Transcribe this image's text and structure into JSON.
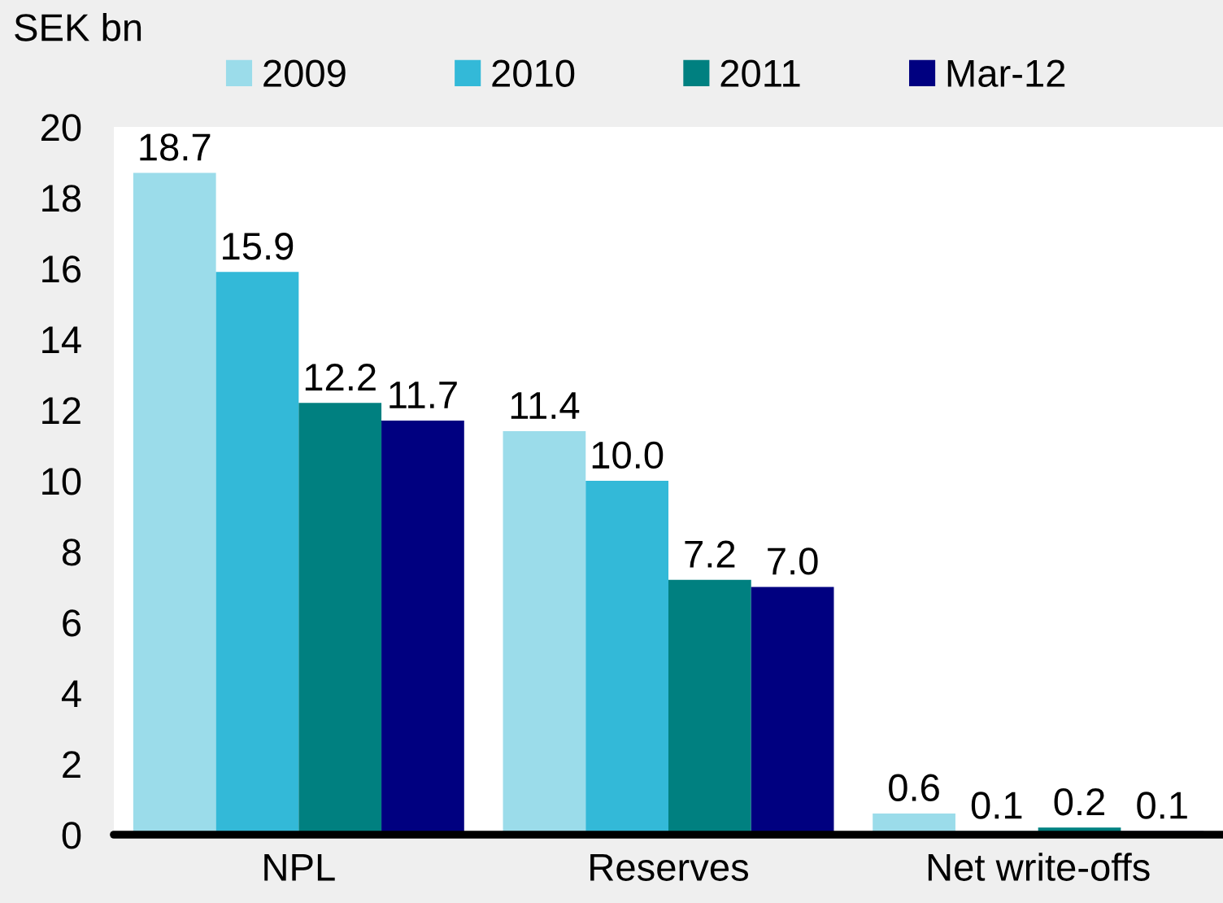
{
  "chart_data": {
    "type": "bar",
    "ylabel": "SEK bn",
    "categories": [
      "NPL",
      "Reserves",
      "Net write-offs"
    ],
    "series": [
      {
        "name": "2009",
        "color": "#9bdcea",
        "values": [
          18.7,
          11.4,
          0.6
        ],
        "value_labels": [
          "18.7",
          "11.4",
          "0.6"
        ]
      },
      {
        "name": "2010",
        "color": "#33b9d8",
        "values": [
          15.9,
          10.0,
          0.1
        ],
        "value_labels": [
          "15.9",
          "10.0",
          "0.1"
        ]
      },
      {
        "name": "2011",
        "color": "#008080",
        "values": [
          12.2,
          7.2,
          0.2
        ],
        "value_labels": [
          "12.2",
          "7.2",
          "0.2"
        ]
      },
      {
        "name": "Mar-12",
        "color": "#000080",
        "values": [
          11.7,
          7.0,
          0.1
        ],
        "value_labels": [
          "11.7",
          "7.0",
          "0.1"
        ]
      }
    ],
    "ylim": [
      0,
      20
    ],
    "yticks": [
      0,
      2,
      4,
      6,
      8,
      10,
      12,
      14,
      16,
      18,
      20
    ],
    "legend": "top",
    "grid": false
  }
}
